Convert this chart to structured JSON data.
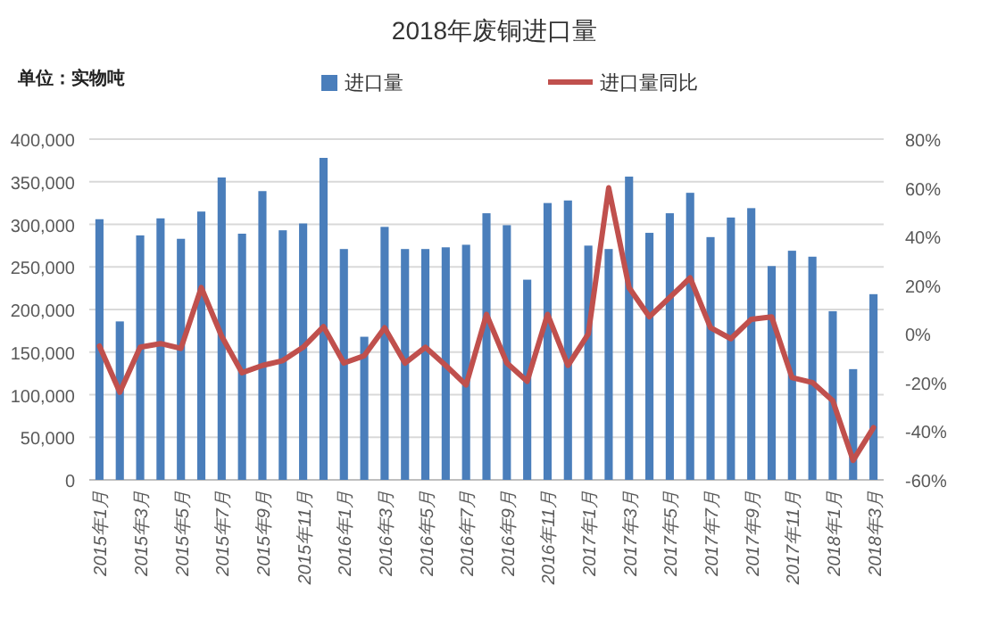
{
  "chart_data": {
    "type": "bar",
    "title": "2018年废铜进口量",
    "annotations": [
      "单位：实物吨"
    ],
    "categories": [
      "2015年1月",
      null,
      "2015年3月",
      null,
      "2015年5月",
      null,
      "2015年7月",
      null,
      "2015年9月",
      null,
      "2015年11月",
      null,
      "2016年1月",
      null,
      "2016年3月",
      null,
      "2016年5月",
      null,
      "2016年7月",
      null,
      "2016年9月",
      null,
      "2016年11月",
      null,
      "2017年1月",
      null,
      "2017年3月",
      null,
      "2017年5月",
      null,
      "2017年7月",
      null,
      "2017年9月",
      null,
      "2017年11月",
      null,
      "2018年1月",
      null,
      "2018年3月"
    ],
    "series": [
      {
        "name": "进口量",
        "color": "#4a7ebb",
        "values": [
          306000,
          186000,
          287000,
          307000,
          283000,
          315000,
          355000,
          289000,
          339000,
          293000,
          301000,
          378000,
          271000,
          168000,
          297000,
          271000,
          271000,
          273000,
          276000,
          313000,
          299000,
          235000,
          325000,
          328000,
          275000,
          271000,
          356000,
          290000,
          313000,
          337000,
          285000,
          308000,
          319000,
          251000,
          269000,
          262000,
          198000,
          130000,
          218000
        ]
      },
      {
        "name": "进口量同比",
        "type": "line",
        "axis": "y2",
        "color": "#c0504d",
        "values": [
          -5,
          -24,
          -5.5,
          -4,
          -6,
          19,
          -1,
          -16,
          -13,
          -11,
          -5.5,
          3,
          -12,
          -9,
          2.5,
          -12,
          -5.5,
          -13,
          -21,
          8,
          -12,
          -19.5,
          8,
          -13,
          0,
          60,
          19,
          7,
          15,
          23,
          2.5,
          -2,
          6,
          7,
          -18,
          -20,
          -27.5,
          -52,
          -38.5
        ]
      }
    ],
    "ylim": [
      0,
      400000
    ],
    "yticks": [
      0,
      {
        "value": 50000,
        "label": "50,000"
      },
      {
        "value": 100000,
        "label": "100,000"
      },
      {
        "value": 150000,
        "label": "150,000"
      },
      {
        "value": 200000,
        "label": "200,000"
      },
      {
        "value": 250000,
        "label": "250,000"
      },
      {
        "value": 300000,
        "label": "300,000"
      },
      {
        "value": 350000,
        "label": "350,000"
      },
      {
        "value": 400000,
        "label": "400,000"
      }
    ],
    "y2lim": [
      -60,
      80
    ],
    "y2ticks": [
      {
        "value": -60,
        "label": "-60%"
      },
      {
        "value": -40,
        "label": "-40%"
      },
      {
        "value": -20,
        "label": "-20%"
      },
      {
        "value": 0,
        "label": "0%"
      },
      {
        "value": 20,
        "label": "20%"
      },
      {
        "value": 40,
        "label": "40%"
      },
      {
        "value": 60,
        "label": "60%"
      },
      {
        "value": 80,
        "label": "80%"
      }
    ],
    "grid": "y",
    "legend": "top",
    "marker": "none",
    "line_style": "solid"
  }
}
